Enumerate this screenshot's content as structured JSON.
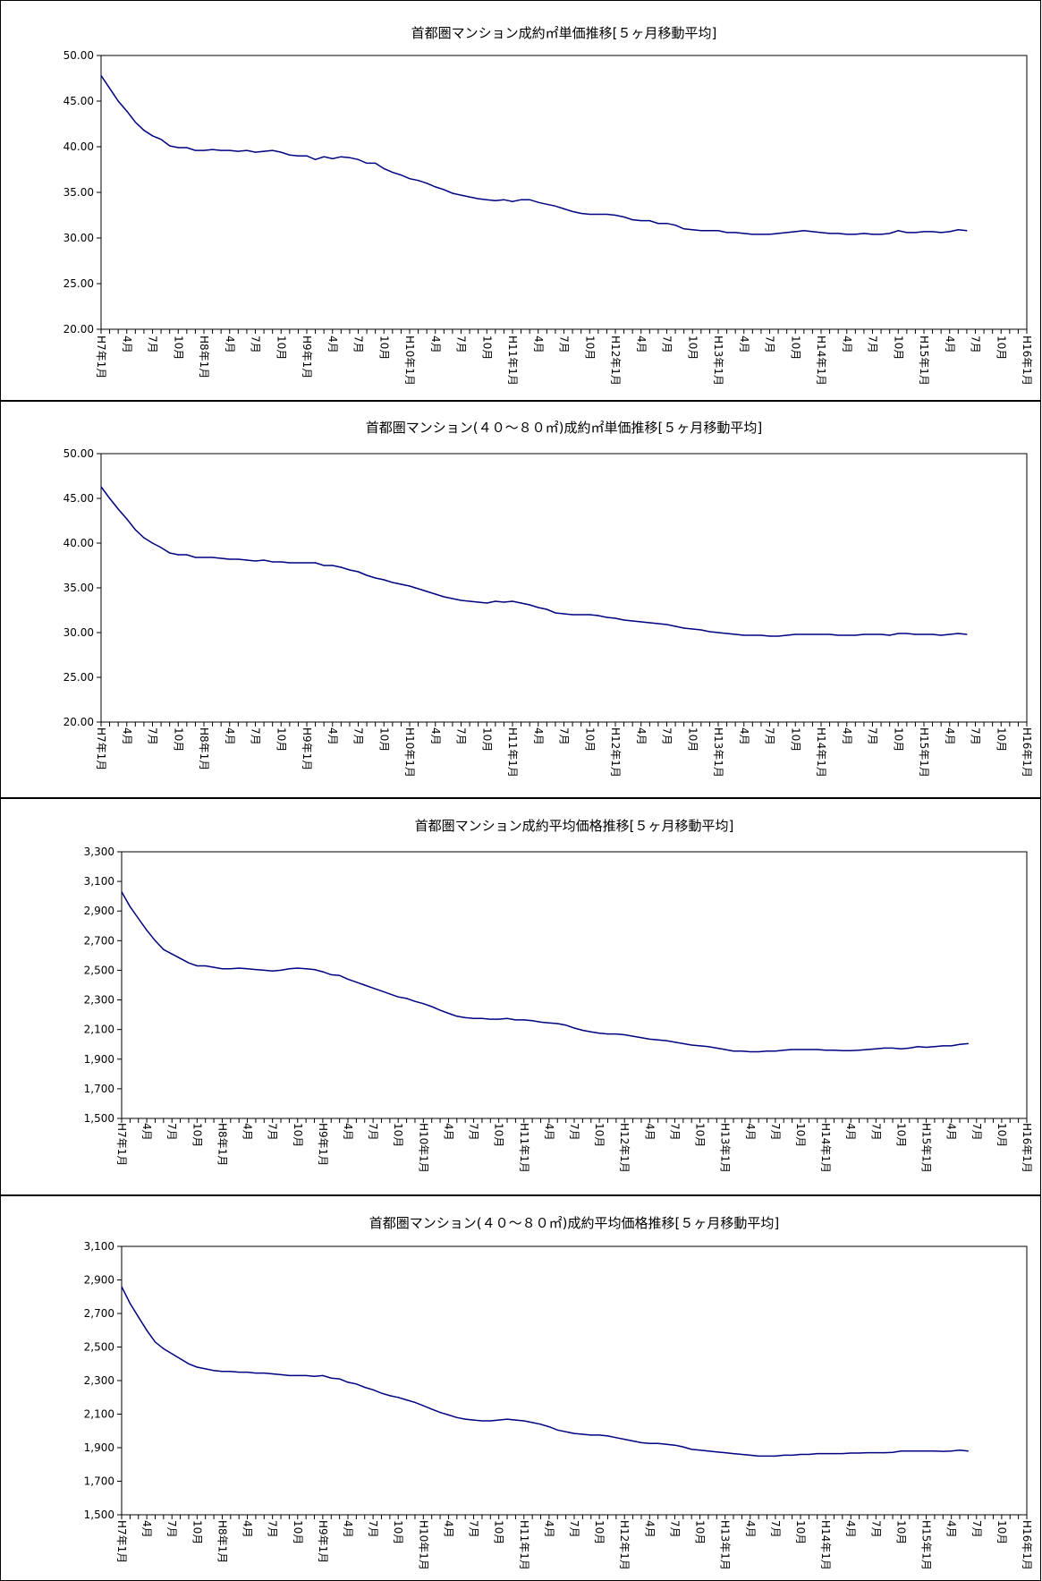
{
  "chart_data": [
    {
      "type": "line",
      "title": "首都圏マンション成約㎡単価推移[５ヶ月移動平均]",
      "ylim": [
        20,
        50
      ],
      "y_ticks": [
        "20.00",
        "25.00",
        "30.00",
        "35.00",
        "40.00",
        "45.00",
        "50.00"
      ],
      "y_tick_values": [
        20,
        25,
        30,
        35,
        40,
        45,
        50
      ],
      "x_tick_labels": [
        "H7年1月",
        "4月",
        "7月",
        "10月",
        "H8年1月",
        "4月",
        "7月",
        "10月",
        "H9年1月",
        "4月",
        "7月",
        "10月",
        "H10年1月",
        "4月",
        "7月",
        "10月",
        "H11年1月",
        "4月",
        "7月",
        "10月",
        "H12年1月",
        "4月",
        "7月",
        "10月",
        "H13年1月",
        "4月",
        "7月",
        "10月",
        "H14年1月",
        "4月",
        "7月",
        "10月",
        "H15年1月",
        "4月",
        "7月",
        "10月",
        "H16年1月"
      ],
      "x_range_months": [
        0,
        108
      ],
      "line_color": "#000080",
      "values": [
        47.8,
        46.4,
        45.0,
        43.9,
        42.7,
        41.8,
        41.2,
        40.8,
        40.1,
        39.9,
        39.9,
        39.6,
        39.6,
        39.7,
        39.6,
        39.6,
        39.5,
        39.6,
        39.4,
        39.5,
        39.6,
        39.4,
        39.1,
        39.0,
        39.0,
        38.6,
        38.9,
        38.7,
        38.9,
        38.8,
        38.6,
        38.2,
        38.2,
        37.6,
        37.2,
        36.9,
        36.5,
        36.3,
        36.0,
        35.6,
        35.3,
        34.9,
        34.7,
        34.5,
        34.3,
        34.2,
        34.1,
        34.2,
        34.0,
        34.2,
        34.2,
        33.9,
        33.7,
        33.5,
        33.2,
        32.9,
        32.7,
        32.6,
        32.6,
        32.6,
        32.5,
        32.3,
        32.0,
        31.9,
        31.9,
        31.6,
        31.6,
        31.4,
        31.0,
        30.9,
        30.8,
        30.8,
        30.8,
        30.6,
        30.6,
        30.5,
        30.4,
        30.4,
        30.4,
        30.5,
        30.6,
        30.7,
        30.8,
        30.7,
        30.6,
        30.5,
        30.5,
        30.4,
        30.4,
        30.5,
        30.4,
        30.4,
        30.5,
        30.8,
        30.6,
        30.6,
        30.7,
        30.7,
        30.6,
        30.7,
        30.9,
        30.8
      ]
    },
    {
      "type": "line",
      "title": "首都圏マンション(４０～８０㎡)成約㎡単価推移[５ヶ月移動平均]",
      "ylim": [
        20,
        50
      ],
      "y_ticks": [
        "20.00",
        "25.00",
        "30.00",
        "35.00",
        "40.00",
        "45.00",
        "50.00"
      ],
      "y_tick_values": [
        20,
        25,
        30,
        35,
        40,
        45,
        50
      ],
      "x_tick_labels": [
        "H7年1月",
        "4月",
        "7月",
        "10月",
        "H8年1月",
        "4月",
        "7月",
        "10月",
        "H9年1月",
        "4月",
        "7月",
        "10月",
        "H10年1月",
        "4月",
        "7月",
        "10月",
        "H11年1月",
        "4月",
        "7月",
        "10月",
        "H12年1月",
        "4月",
        "7月",
        "10月",
        "H13年1月",
        "4月",
        "7月",
        "10月",
        "H14年1月",
        "4月",
        "7月",
        "10月",
        "H15年1月",
        "4月",
        "7月",
        "10月",
        "H16年1月"
      ],
      "x_range_months": [
        0,
        108
      ],
      "line_color": "#000080",
      "values": [
        46.3,
        45.0,
        43.8,
        42.7,
        41.5,
        40.6,
        40.0,
        39.5,
        38.9,
        38.7,
        38.7,
        38.4,
        38.4,
        38.4,
        38.3,
        38.2,
        38.2,
        38.1,
        38.0,
        38.1,
        37.9,
        37.9,
        37.8,
        37.8,
        37.8,
        37.8,
        37.5,
        37.5,
        37.3,
        37.0,
        36.8,
        36.4,
        36.1,
        35.9,
        35.6,
        35.4,
        35.2,
        34.9,
        34.6,
        34.3,
        34.0,
        33.8,
        33.6,
        33.5,
        33.4,
        33.3,
        33.5,
        33.4,
        33.5,
        33.3,
        33.1,
        32.8,
        32.6,
        32.2,
        32.1,
        32.0,
        32.0,
        32.0,
        31.9,
        31.7,
        31.6,
        31.4,
        31.3,
        31.2,
        31.1,
        31.0,
        30.9,
        30.7,
        30.5,
        30.4,
        30.3,
        30.1,
        30.0,
        29.9,
        29.8,
        29.7,
        29.7,
        29.7,
        29.6,
        29.6,
        29.7,
        29.8,
        29.8,
        29.8,
        29.8,
        29.8,
        29.7,
        29.7,
        29.7,
        29.8,
        29.8,
        29.8,
        29.7,
        29.9,
        29.9,
        29.8,
        29.8,
        29.8,
        29.7,
        29.8,
        29.9,
        29.8
      ]
    },
    {
      "type": "line",
      "title": "首都圏マンション成約平均価格推移[５ヶ月移動平均]",
      "ylim": [
        1500,
        3300
      ],
      "y_ticks": [
        "1,500",
        "1,700",
        "1,900",
        "2,100",
        "2,300",
        "2,500",
        "2,700",
        "2,900",
        "3,100",
        "3,300"
      ],
      "y_tick_values": [
        1500,
        1700,
        1900,
        2100,
        2300,
        2500,
        2700,
        2900,
        3100,
        3300
      ],
      "x_tick_labels": [
        "H7年1月",
        "4月",
        "7月",
        "10月",
        "H8年1月",
        "4月",
        "7月",
        "10月",
        "H9年1月",
        "4月",
        "7月",
        "10月",
        "H10年1月",
        "4月",
        "7月",
        "10月",
        "H11年1月",
        "4月",
        "7月",
        "10月",
        "H12年1月",
        "4月",
        "7月",
        "10月",
        "H13年1月",
        "4月",
        "7月",
        "10月",
        "H14年1月",
        "4月",
        "7月",
        "10月",
        "H15年1月",
        "4月",
        "7月",
        "10月",
        "H16年1月"
      ],
      "x_range_months": [
        0,
        108
      ],
      "line_color": "#000080",
      "values": [
        3030,
        2930,
        2850,
        2770,
        2700,
        2640,
        2610,
        2580,
        2550,
        2530,
        2530,
        2520,
        2510,
        2510,
        2515,
        2510,
        2505,
        2500,
        2495,
        2500,
        2510,
        2515,
        2510,
        2505,
        2490,
        2470,
        2465,
        2440,
        2420,
        2400,
        2380,
        2360,
        2340,
        2320,
        2310,
        2290,
        2275,
        2255,
        2230,
        2210,
        2190,
        2180,
        2175,
        2175,
        2170,
        2170,
        2175,
        2165,
        2165,
        2160,
        2150,
        2145,
        2140,
        2130,
        2110,
        2095,
        2085,
        2075,
        2070,
        2070,
        2065,
        2055,
        2045,
        2035,
        2030,
        2025,
        2015,
        2005,
        1995,
        1990,
        1985,
        1975,
        1965,
        1955,
        1955,
        1950,
        1950,
        1955,
        1955,
        1960,
        1965,
        1965,
        1965,
        1965,
        1960,
        1960,
        1958,
        1958,
        1960,
        1965,
        1970,
        1975,
        1975,
        1970,
        1975,
        1985,
        1980,
        1985,
        1990,
        1990,
        2000,
        2005
      ]
    },
    {
      "type": "line",
      "title": "首都圏マンション(４０～８０㎡)成約平均価格推移[５ヶ月移動平均]",
      "ylim": [
        1500,
        3100
      ],
      "y_ticks": [
        "1,500",
        "1,700",
        "1,900",
        "2,100",
        "2,300",
        "2,500",
        "2,700",
        "2,900",
        "3,100"
      ],
      "y_tick_values": [
        1500,
        1700,
        1900,
        2100,
        2300,
        2500,
        2700,
        2900,
        3100
      ],
      "x_tick_labels": [
        "H7年1月",
        "4月",
        "7月",
        "10月",
        "H8年1月",
        "4月",
        "7月",
        "10月",
        "H9年1月",
        "4月",
        "7月",
        "10月",
        "H10年1月",
        "4月",
        "7月",
        "10月",
        "H11年1月",
        "4月",
        "7月",
        "10月",
        "H12年1月",
        "4月",
        "7月",
        "10月",
        "H13年1月",
        "4月",
        "7月",
        "10月",
        "H14年1月",
        "4月",
        "7月",
        "10月",
        "H15年1月",
        "4月",
        "7月",
        "10月",
        "H16年1月"
      ],
      "x_range_months": [
        0,
        108
      ],
      "line_color": "#000080",
      "values": [
        2860,
        2760,
        2680,
        2600,
        2530,
        2490,
        2460,
        2430,
        2400,
        2380,
        2370,
        2360,
        2355,
        2355,
        2350,
        2350,
        2345,
        2345,
        2340,
        2335,
        2330,
        2330,
        2330,
        2325,
        2330,
        2315,
        2310,
        2290,
        2280,
        2260,
        2245,
        2225,
        2210,
        2200,
        2185,
        2170,
        2150,
        2130,
        2110,
        2095,
        2080,
        2070,
        2065,
        2060,
        2060,
        2065,
        2070,
        2065,
        2060,
        2050,
        2040,
        2025,
        2005,
        1995,
        1985,
        1980,
        1975,
        1975,
        1970,
        1960,
        1950,
        1940,
        1930,
        1925,
        1925,
        1920,
        1915,
        1905,
        1890,
        1885,
        1880,
        1875,
        1870,
        1865,
        1860,
        1855,
        1850,
        1850,
        1850,
        1855,
        1855,
        1860,
        1860,
        1865,
        1865,
        1865,
        1865,
        1868,
        1868,
        1870,
        1870,
        1870,
        1872,
        1880,
        1880,
        1880,
        1880,
        1880,
        1878,
        1880,
        1885,
        1880
      ]
    }
  ]
}
